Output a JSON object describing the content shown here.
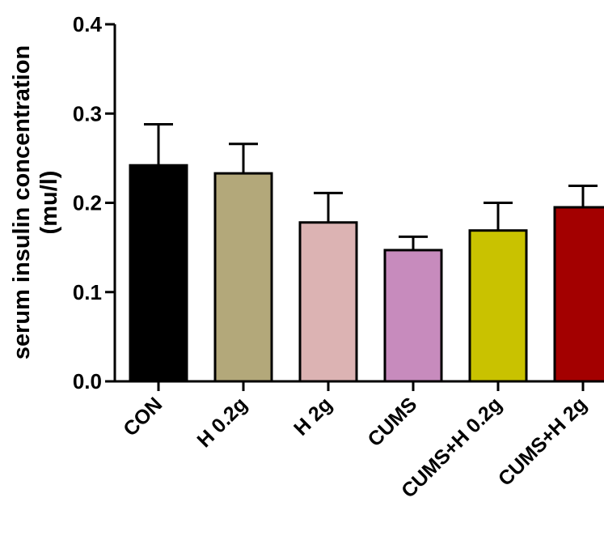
{
  "chart_data": {
    "type": "bar",
    "ylabel": "serum insulin concentration",
    "ylabel_unit": "(mu/l)",
    "ylim": [
      0,
      0.4
    ],
    "yticks": [
      "0.0",
      "0.1",
      "0.2",
      "0.3",
      "0.4"
    ],
    "categories": [
      "CON",
      "H 0.2g",
      "H 2g",
      "CUMS",
      "CUMS+H 0.2g",
      "CUMS+H 2g"
    ],
    "values": [
      0.242,
      0.233,
      0.178,
      0.147,
      0.169,
      0.195
    ],
    "errors": [
      0.046,
      0.033,
      0.033,
      0.015,
      0.031,
      0.024
    ],
    "colors": [
      "#000000",
      "#b3a87a",
      "#dcb3b3",
      "#c78bbd",
      "#c9c200",
      "#a30000"
    ],
    "grid": false,
    "legend": "none"
  }
}
